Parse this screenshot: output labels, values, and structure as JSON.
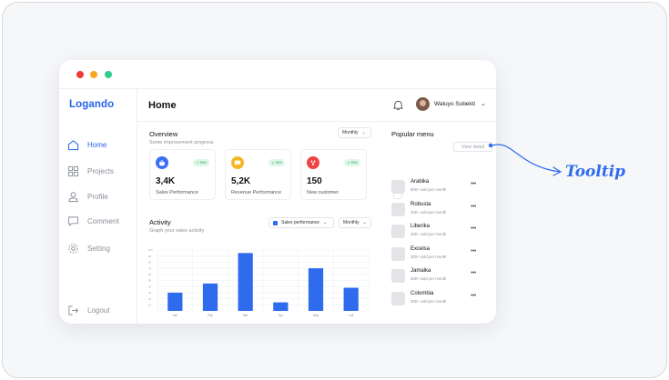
{
  "app": {
    "logo": "Logando"
  },
  "sidebar": {
    "items": [
      {
        "label": "Home",
        "icon": "home-icon",
        "active": true
      },
      {
        "label": "Projects",
        "icon": "grid-icon",
        "active": false
      },
      {
        "label": "Profile",
        "icon": "user-icon",
        "active": false
      },
      {
        "label": "Comment",
        "icon": "chat-icon",
        "active": false
      },
      {
        "label": "Setting",
        "icon": "gear-icon",
        "active": false
      }
    ],
    "logout": {
      "label": "Logout",
      "icon": "logout-icon"
    }
  },
  "header": {
    "title": "Home",
    "user": "Waluyo Subekti"
  },
  "overview": {
    "title": "Overview",
    "subtitle": "Some improvement progress",
    "period": "Monthly",
    "cards": [
      {
        "value": "3,4K",
        "label": "Sales Performance",
        "badge": "35%",
        "icon": "basket-icon",
        "color": "#3b6ef5"
      },
      {
        "value": "5,2K",
        "label": "Revenue Performance",
        "badge": "35%",
        "icon": "chat-bubble-icon",
        "color": "#f5b623"
      },
      {
        "value": "150",
        "label": "New customer",
        "badge": "35%",
        "icon": "fork-icon",
        "color": "#ef4444"
      }
    ]
  },
  "activity": {
    "title": "Activity",
    "subtitle": "Graph your sales activity",
    "series_select": "Sales performance",
    "period": "Monthly"
  },
  "chart_data": {
    "type": "bar",
    "categories": [
      "Jan",
      "Feb",
      "Mar",
      "Apr",
      "May",
      "Juli"
    ],
    "values": [
      30,
      45,
      95,
      14,
      70,
      38
    ],
    "ylim": [
      0,
      100
    ],
    "yticks": [
      "100",
      "90",
      "80",
      "70",
      "60",
      "50",
      "40",
      "30",
      "20",
      "10"
    ],
    "grid": true,
    "color": "#2f6bed"
  },
  "popular": {
    "title": "Popular menu",
    "items": [
      {
        "name": "Arabika",
        "sold": "600+ sold per month"
      },
      {
        "name": "Robusta",
        "sold": "200+ sold per month"
      },
      {
        "name": "Liberika",
        "sold": "200+ sold per month"
      },
      {
        "name": "Excelsa",
        "sold": "300+ sold per month"
      },
      {
        "name": "Jamaika",
        "sold": "200+ sold per month"
      },
      {
        "name": "Colombia",
        "sold": "200+ sold per month"
      }
    ],
    "more": "•••"
  },
  "tooltip": {
    "text": "View detail",
    "annotation": "Tooltip"
  }
}
